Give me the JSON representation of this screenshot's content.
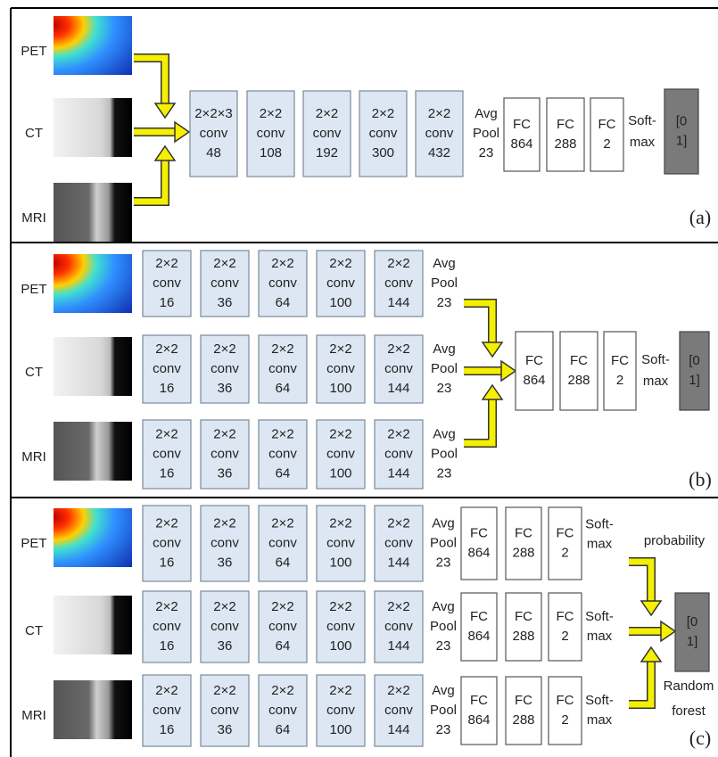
{
  "panels": [
    {
      "label": "(a)",
      "inputs": [
        "PET",
        "CT",
        "MRI"
      ],
      "rows": [
        {
          "conv": [
            [
              "2×2×3",
              "conv",
              "48"
            ],
            [
              "2×2",
              "conv",
              "108"
            ],
            [
              "2×2",
              "conv",
              "192"
            ],
            [
              "2×2",
              "conv",
              "300"
            ],
            [
              "2×2",
              "conv",
              "432"
            ]
          ],
          "pool": [
            "Avg",
            "Pool",
            "23"
          ]
        }
      ],
      "fc": [
        [
          "FC",
          "864"
        ],
        [
          "FC",
          "288"
        ],
        [
          "FC",
          "2"
        ]
      ],
      "softmax": [
        "Soft-",
        "max"
      ],
      "output": [
        "[0",
        "1]"
      ]
    },
    {
      "label": "(b)",
      "inputs": [
        "PET",
        "CT",
        "MRI"
      ],
      "rows": [
        {
          "conv": [
            [
              "2×2",
              "conv",
              "16"
            ],
            [
              "2×2",
              "conv",
              "36"
            ],
            [
              "2×2",
              "conv",
              "64"
            ],
            [
              "2×2",
              "conv",
              "100"
            ],
            [
              "2×2",
              "conv",
              "144"
            ]
          ],
          "pool": [
            "Avg",
            "Pool",
            "23"
          ]
        },
        {
          "conv": [
            [
              "2×2",
              "conv",
              "16"
            ],
            [
              "2×2",
              "conv",
              "36"
            ],
            [
              "2×2",
              "conv",
              "64"
            ],
            [
              "2×2",
              "conv",
              "100"
            ],
            [
              "2×2",
              "conv",
              "144"
            ]
          ],
          "pool": [
            "Avg",
            "Pool",
            "23"
          ]
        },
        {
          "conv": [
            [
              "2×2",
              "conv",
              "16"
            ],
            [
              "2×2",
              "conv",
              "36"
            ],
            [
              "2×2",
              "conv",
              "64"
            ],
            [
              "2×2",
              "conv",
              "100"
            ],
            [
              "2×2",
              "conv",
              "144"
            ]
          ],
          "pool": [
            "Avg",
            "Pool",
            "23"
          ]
        }
      ],
      "fc": [
        [
          "FC",
          "864"
        ],
        [
          "FC",
          "288"
        ],
        [
          "FC",
          "2"
        ]
      ],
      "softmax": [
        "Soft-",
        "max"
      ],
      "output": [
        "[0",
        "1]"
      ]
    },
    {
      "label": "(c)",
      "inputs": [
        "PET",
        "CT",
        "MRI"
      ],
      "rows": [
        {
          "conv": [
            [
              "2×2",
              "conv",
              "16"
            ],
            [
              "2×2",
              "conv",
              "36"
            ],
            [
              "2×2",
              "conv",
              "64"
            ],
            [
              "2×2",
              "conv",
              "100"
            ],
            [
              "2×2",
              "conv",
              "144"
            ]
          ],
          "pool": [
            "Avg",
            "Pool",
            "23"
          ],
          "fc": [
            [
              "FC",
              "864"
            ],
            [
              "FC",
              "288"
            ],
            [
              "FC",
              "2"
            ]
          ],
          "softmax": [
            "Soft-",
            "max"
          ]
        },
        {
          "conv": [
            [
              "2×2",
              "conv",
              "16"
            ],
            [
              "2×2",
              "conv",
              "36"
            ],
            [
              "2×2",
              "conv",
              "64"
            ],
            [
              "2×2",
              "conv",
              "100"
            ],
            [
              "2×2",
              "conv",
              "144"
            ]
          ],
          "pool": [
            "Avg",
            "Pool",
            "23"
          ],
          "fc": [
            [
              "FC",
              "864"
            ],
            [
              "FC",
              "288"
            ],
            [
              "FC",
              "2"
            ]
          ],
          "softmax": [
            "Soft-",
            "max"
          ]
        },
        {
          "conv": [
            [
              "2×2",
              "conv",
              "16"
            ],
            [
              "2×2",
              "conv",
              "36"
            ],
            [
              "2×2",
              "conv",
              "64"
            ],
            [
              "2×2",
              "conv",
              "100"
            ],
            [
              "2×2",
              "conv",
              "144"
            ]
          ],
          "pool": [
            "Avg",
            "Pool",
            "23"
          ],
          "fc": [
            [
              "FC",
              "864"
            ],
            [
              "FC",
              "288"
            ],
            [
              "FC",
              "2"
            ]
          ],
          "softmax": [
            "Soft-",
            "max"
          ]
        }
      ],
      "probability": "probability",
      "fusion": [
        "Random",
        "forest"
      ],
      "output": [
        "[0",
        "1]"
      ]
    }
  ]
}
